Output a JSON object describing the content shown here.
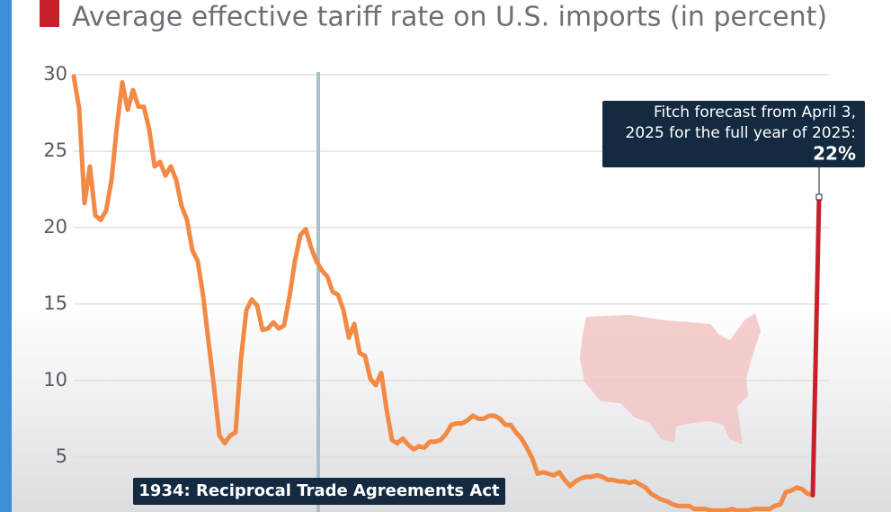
{
  "chart_data": {
    "type": "line",
    "title": "Average effective tariff rate on U.S. imports (in percent)",
    "ylim": [
      1.4,
      31
    ],
    "yticks": [
      5,
      10,
      15,
      20,
      25,
      30
    ],
    "grid": true,
    "color": "#f28a45",
    "values": [
      29.9,
      27.8,
      21.6,
      24.0,
      20.8,
      20.5,
      21.1,
      23.1,
      26.6,
      29.5,
      27.7,
      29.0,
      27.9,
      27.9,
      26.4,
      24.0,
      24.3,
      23.4,
      24.0,
      23.1,
      21.4,
      20.5,
      18.5,
      17.8,
      15.5,
      12.5,
      9.6,
      6.4,
      5.9,
      6.4,
      6.6,
      11.4,
      14.6,
      15.3,
      14.9,
      13.3,
      13.4,
      13.8,
      13.4,
      13.6,
      15.5,
      17.8,
      19.5,
      19.9,
      18.7,
      17.8,
      17.2,
      16.8,
      15.8,
      15.6,
      14.6,
      12.8,
      13.7,
      11.8,
      11.6,
      10.1,
      9.7,
      10.5,
      8.1,
      6.1,
      5.9,
      6.2,
      5.8,
      5.5,
      5.7,
      5.6,
      6.0,
      6.0,
      6.1,
      6.5,
      7.1,
      7.2,
      7.2,
      7.4,
      7.7,
      7.5,
      7.5,
      7.7,
      7.7,
      7.5,
      7.1,
      7.1,
      6.6,
      6.2,
      5.6,
      4.9,
      3.9,
      4.0,
      3.9,
      3.8,
      4.0,
      3.5,
      3.1,
      3.4,
      3.6,
      3.7,
      3.7,
      3.8,
      3.7,
      3.5,
      3.5,
      3.4,
      3.4,
      3.3,
      3.4,
      3.2,
      3.0,
      2.6,
      2.4,
      2.2,
      2.1,
      1.9,
      1.8,
      1.8,
      1.8,
      1.6,
      1.6,
      1.6,
      1.5,
      1.5,
      1.5,
      1.5,
      1.6,
      1.5,
      1.5,
      1.5,
      1.6,
      1.6,
      1.6,
      1.6,
      1.8,
      1.9,
      2.7,
      2.8,
      3.0,
      2.9,
      2.6,
      2.5
    ],
    "forecast": {
      "value": 22,
      "value_label": "22%",
      "color": "#c8202a",
      "text": [
        "Fitch forecast from April 3,",
        "2025 for the full year of 2025:"
      ]
    },
    "annotation": "1934: Reciprocal Trade Agreements Act"
  }
}
